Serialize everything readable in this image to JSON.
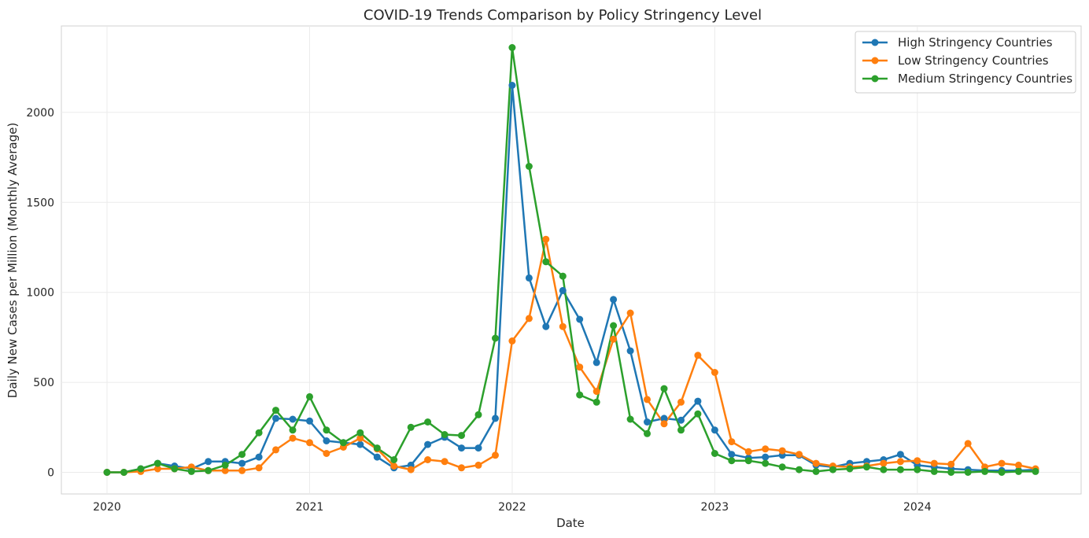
{
  "chart_data": {
    "type": "line",
    "title": "COVID-19 Trends Comparison by Policy Stringency Level",
    "xlabel": "Date",
    "ylabel": "Daily New Cases per Million (Monthly Average)",
    "x": [
      "2020-01",
      "2020-02",
      "2020-03",
      "2020-04",
      "2020-05",
      "2020-06",
      "2020-07",
      "2020-08",
      "2020-09",
      "2020-10",
      "2020-11",
      "2020-12",
      "2021-01",
      "2021-02",
      "2021-03",
      "2021-04",
      "2021-05",
      "2021-06",
      "2021-07",
      "2021-08",
      "2021-09",
      "2021-10",
      "2021-11",
      "2021-12",
      "2022-01",
      "2022-02",
      "2022-03",
      "2022-04",
      "2022-05",
      "2022-06",
      "2022-07",
      "2022-08",
      "2022-09",
      "2022-10",
      "2022-11",
      "2022-12",
      "2023-01",
      "2023-02",
      "2023-03",
      "2023-04",
      "2023-05",
      "2023-06",
      "2023-07",
      "2023-08",
      "2023-09",
      "2023-10",
      "2023-11",
      "2023-12",
      "2024-01",
      "2024-02",
      "2024-03",
      "2024-04",
      "2024-05",
      "2024-06",
      "2024-07",
      "2024-08"
    ],
    "x_ticks": [
      "2020",
      "2021",
      "2022",
      "2023",
      "2024"
    ],
    "y_ticks": [
      0,
      500,
      1000,
      1500,
      2000
    ],
    "ylim": [
      -120,
      2480
    ],
    "grid": true,
    "legend_position": "top-right",
    "series": [
      {
        "name": "High Stringency Countries",
        "color": "#1f77b4",
        "values": [
          0,
          0,
          20,
          50,
          35,
          20,
          60,
          60,
          50,
          85,
          300,
          295,
          285,
          175,
          165,
          155,
          85,
          25,
          40,
          155,
          195,
          135,
          135,
          300,
          2150,
          1080,
          810,
          1010,
          850,
          610,
          960,
          675,
          280,
          300,
          290,
          395,
          235,
          100,
          80,
          85,
          95,
          95,
          40,
          30,
          50,
          60,
          70,
          100,
          40,
          30,
          20,
          15,
          10,
          10,
          10,
          15
        ]
      },
      {
        "name": "Low Stringency Countries",
        "color": "#ff7f0e",
        "values": [
          0,
          0,
          5,
          20,
          20,
          30,
          10,
          10,
          10,
          25,
          125,
          190,
          165,
          105,
          140,
          190,
          130,
          35,
          15,
          70,
          60,
          25,
          40,
          95,
          730,
          855,
          1295,
          810,
          585,
          450,
          740,
          885,
          405,
          270,
          390,
          650,
          555,
          170,
          115,
          130,
          120,
          100,
          50,
          35,
          30,
          35,
          50,
          60,
          65,
          50,
          45,
          160,
          30,
          50,
          40,
          20
        ]
      },
      {
        "name": "Medium Stringency Countries",
        "color": "#2ca02c",
        "values": [
          0,
          0,
          20,
          50,
          20,
          5,
          10,
          40,
          100,
          220,
          345,
          235,
          420,
          235,
          165,
          220,
          135,
          70,
          250,
          280,
          210,
          205,
          320,
          745,
          2360,
          1700,
          1170,
          1090,
          430,
          390,
          815,
          295,
          215,
          465,
          235,
          325,
          105,
          65,
          65,
          50,
          30,
          15,
          5,
          15,
          20,
          30,
          15,
          15,
          15,
          5,
          0,
          0,
          5,
          0,
          5,
          5
        ]
      }
    ]
  }
}
